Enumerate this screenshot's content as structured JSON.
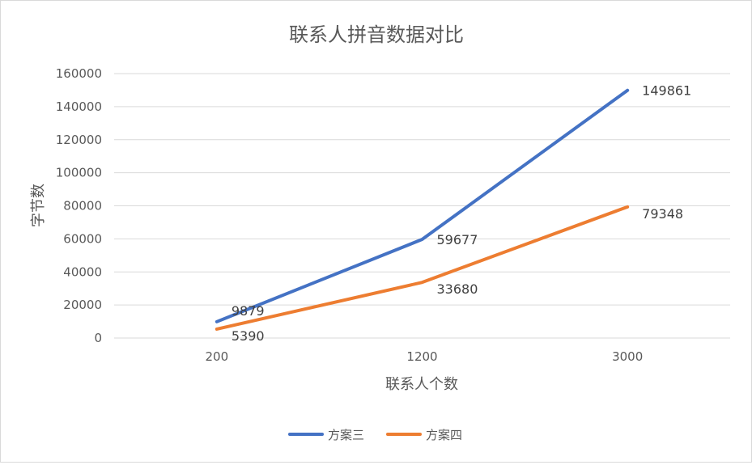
{
  "chart_data": {
    "type": "line",
    "title": "联系人拼音数据对比",
    "xlabel": "联系人个数",
    "ylabel": "字节数",
    "categories": [
      "200",
      "1200",
      "3000"
    ],
    "ylim": [
      0,
      160000
    ],
    "yticks": [
      0,
      20000,
      40000,
      60000,
      80000,
      100000,
      120000,
      140000,
      160000
    ],
    "grid": true,
    "legend": "bottom",
    "series": [
      {
        "name": "方案三",
        "values": [
          9879,
          59677,
          149861
        ],
        "color": "#4472c4"
      },
      {
        "name": "方案四",
        "values": [
          5390,
          33680,
          79348
        ],
        "color": "#ed7d31"
      }
    ]
  }
}
